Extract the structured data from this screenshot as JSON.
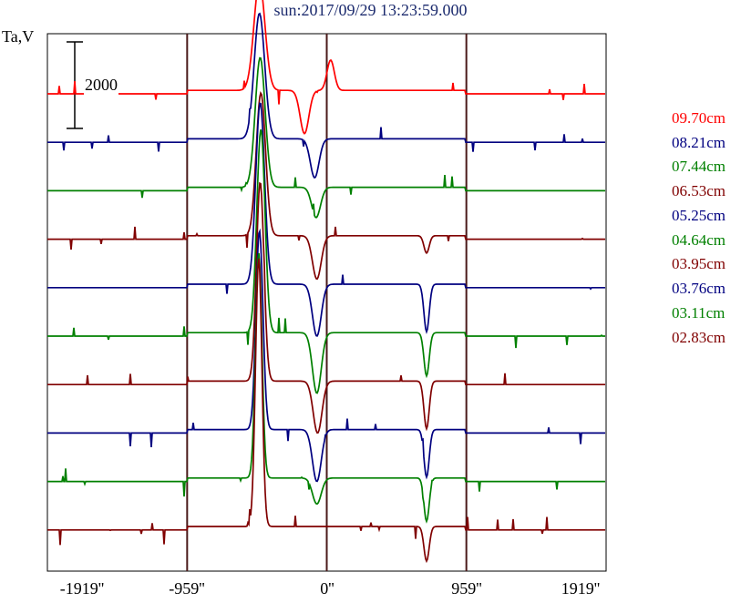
{
  "chart_data": {
    "type": "line",
    "title": "sun:2017/09/29 13:23:59.000",
    "ylabel": "Ta,V",
    "xlabel": "",
    "x_ticks": [
      "-1919''",
      "-959''",
      "0''",
      "959''",
      "1919''"
    ],
    "x_tick_values": [
      -1919,
      -959,
      0,
      959,
      1919
    ],
    "xlim": [
      -1919,
      1919
    ],
    "scale_bar_label": "2000",
    "series": [
      {
        "name": "09.70cm",
        "color": "#ff0000",
        "peak_x": -460,
        "peak_amp": 2500,
        "dip_x": -150,
        "dip_amp": -1000,
        "second_x": 30,
        "second_amp": 700,
        "limb_dip": 0
      },
      {
        "name": "08.21cm",
        "color": "#000080",
        "peak_x": -460,
        "peak_amp": 2900,
        "dip_x": -80,
        "dip_amp": -900,
        "second_x": 0,
        "second_amp": 0,
        "limb_dip": 0
      },
      {
        "name": "07.44cm",
        "color": "#008000",
        "peak_x": -455,
        "peak_amp": 3000,
        "dip_x": -70,
        "dip_amp": -700,
        "second_x": 0,
        "second_amp": 0,
        "limb_dip": 0
      },
      {
        "name": "06.53cm",
        "color": "#800000",
        "peak_x": -450,
        "peak_amp": 3300,
        "dip_x": -65,
        "dip_amp": -1000,
        "second_x": 0,
        "second_amp": 0,
        "limb_dip": -400
      },
      {
        "name": "05.25cm",
        "color": "#000080",
        "peak_x": -455,
        "peak_amp": 4200,
        "dip_x": -65,
        "dip_amp": -1200,
        "second_x": 0,
        "second_amp": 0,
        "limb_dip": -1100
      },
      {
        "name": "04.64cm",
        "color": "#008000",
        "peak_x": -450,
        "peak_amp": 4700,
        "dip_x": -65,
        "dip_amp": -1400,
        "second_x": 0,
        "second_amp": 0,
        "limb_dip": -1000
      },
      {
        "name": "03.95cm",
        "color": "#800000",
        "peak_x": -455,
        "peak_amp": 4600,
        "dip_x": -60,
        "dip_amp": -1200,
        "second_x": 0,
        "second_amp": 0,
        "limb_dip": -1100
      },
      {
        "name": "03.76cm",
        "color": "#000080",
        "peak_x": -460,
        "peak_amp": 4600,
        "dip_x": -65,
        "dip_amp": -1200,
        "second_x": 0,
        "second_amp": 0,
        "limb_dip": -1100
      },
      {
        "name": "03.11cm",
        "color": "#008000",
        "peak_x": -465,
        "peak_amp": 5200,
        "dip_x": -65,
        "dip_amp": -600,
        "second_x": 0,
        "second_amp": 0,
        "limb_dip": -1000
      },
      {
        "name": "02.83cm",
        "color": "#800000",
        "peak_x": -465,
        "peak_amp": 6200,
        "dip_x": 0,
        "dip_amp": 0,
        "second_x": 0,
        "second_amp": 0,
        "limb_dip": -800
      }
    ]
  }
}
